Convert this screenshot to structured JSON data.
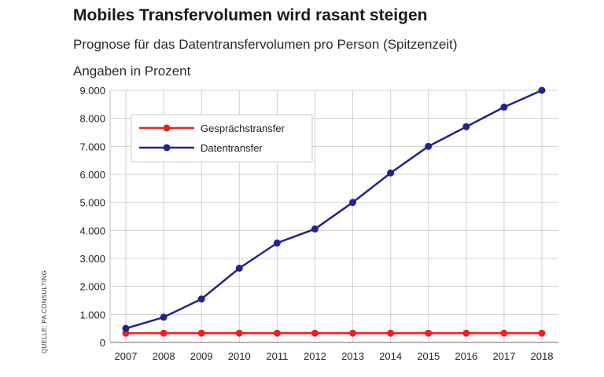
{
  "header": {
    "title": "Mobiles Transfervolumen wird rasant steigen",
    "subtitle": "Prognose für das Datentransfervolumen pro Person (Spitzenzeit)",
    "unit": "Angaben in Prozent",
    "source": "QUELLE: PA CONSULTING"
  },
  "chart_data": {
    "type": "line",
    "title": "Mobiles Transfervolumen wird rasant steigen",
    "subtitle": "Prognose für das Datentransfervolumen pro Person (Spitzenzeit)",
    "ylabel": "Angaben in Prozent",
    "x": [
      "2007",
      "2008",
      "2009",
      "2010",
      "2011",
      "2012",
      "2013",
      "2014",
      "2015",
      "2016",
      "2017",
      "2018"
    ],
    "ylim": [
      0,
      9000
    ],
    "yticks": [
      0,
      1000,
      2000,
      3000,
      4000,
      5000,
      6000,
      7000,
      8000,
      9000
    ],
    "ytick_labels": [
      "0",
      "1.000",
      "2.000",
      "3.000",
      "4.000",
      "5.000",
      "6.000",
      "7.000",
      "8.000",
      "9.000"
    ],
    "grid": true,
    "legend_position": "top-left",
    "series": [
      {
        "name": "Gesprächstransfer",
        "color": "#e8231e",
        "values": [
          330,
          330,
          330,
          330,
          330,
          330,
          330,
          330,
          330,
          330,
          330,
          330
        ]
      },
      {
        "name": "Datentransfer",
        "color": "#23238e",
        "values": [
          500,
          900,
          1550,
          2650,
          3550,
          4050,
          5000,
          6050,
          7000,
          7700,
          8400,
          9000
        ]
      }
    ]
  }
}
